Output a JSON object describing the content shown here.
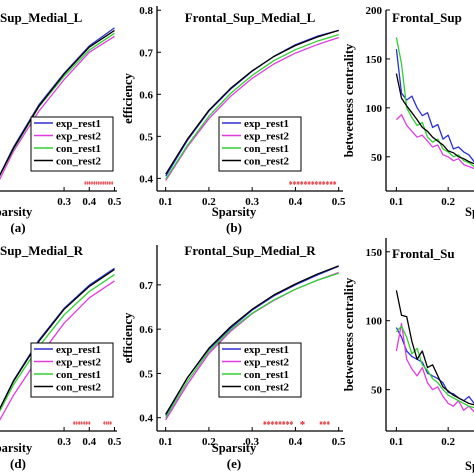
{
  "figure": {
    "series_colors": {
      "exp_rest1": "#2b2fd6",
      "exp_rest2": "#e23be3",
      "con_rest1": "#2fd12f",
      "con_rest2": "#000000"
    },
    "star_color": "#e3262b"
  },
  "chart_data": [
    {
      "type": "line",
      "panel_label": "(a)",
      "title": "Sup_Medial_L",
      "xlabel": "Sparsity",
      "ylabel": "",
      "xlim": [
        0.03,
        0.51
      ],
      "ylim": [
        0.37,
        0.81
      ],
      "xticks": [
        0.3,
        0.4,
        0.5
      ],
      "xtick_labels": [
        "0.3",
        "0.4",
        "0.5"
      ],
      "yticks": [],
      "legend": "lower-right",
      "legend_entries": [
        "exp_rest1",
        "exp_rest2",
        "con_rest1",
        "con_rest2"
      ],
      "significance": {
        "text": "*************",
        "x_start": 0.38,
        "x_end": 0.495
      },
      "series": [
        {
          "name": "exp_rest1",
          "x": [
            0.03,
            0.1,
            0.2,
            0.3,
            0.4,
            0.5
          ],
          "values": [
            0.39,
            0.475,
            0.575,
            0.65,
            0.715,
            0.758
          ]
        },
        {
          "name": "exp_rest2",
          "x": [
            0.03,
            0.1,
            0.2,
            0.3,
            0.4,
            0.5
          ],
          "values": [
            0.38,
            0.465,
            0.56,
            0.635,
            0.7,
            0.738
          ]
        },
        {
          "name": "con_rest1",
          "x": [
            0.03,
            0.1,
            0.2,
            0.3,
            0.4,
            0.5
          ],
          "values": [
            0.39,
            0.47,
            0.57,
            0.643,
            0.705,
            0.745
          ]
        },
        {
          "name": "con_rest2",
          "x": [
            0.03,
            0.1,
            0.2,
            0.3,
            0.4,
            0.5
          ],
          "values": [
            0.39,
            0.472,
            0.572,
            0.648,
            0.712,
            0.752
          ]
        }
      ]
    },
    {
      "type": "line",
      "panel_label": "(b)",
      "title": "Frontal_Sup_Medial_L",
      "xlabel": "Sparsity",
      "ylabel": "efficiency",
      "xlim": [
        0.08,
        0.51
      ],
      "ylim": [
        0.37,
        0.81
      ],
      "xticks": [
        0.1,
        0.2,
        0.3,
        0.4,
        0.5
      ],
      "xtick_labels": [
        "0.1",
        "0.2",
        "0.3",
        "0.4",
        "0.5"
      ],
      "yticks": [
        0.4,
        0.5,
        0.6,
        0.7,
        0.8
      ],
      "ytick_labels": [
        "0.4",
        "0.5",
        "0.6",
        "0.7",
        "0.8"
      ],
      "legend": "lower-right",
      "legend_entries": [
        "exp_rest1",
        "exp_rest2",
        "con_rest1",
        "con_rest2"
      ],
      "significance": {
        "text": "*************",
        "x_start": 0.385,
        "x_end": 0.495
      },
      "series": [
        {
          "name": "exp_rest1",
          "x": [
            0.1,
            0.15,
            0.2,
            0.25,
            0.3,
            0.35,
            0.4,
            0.45,
            0.5
          ],
          "values": [
            0.405,
            0.49,
            0.56,
            0.612,
            0.655,
            0.69,
            0.718,
            0.738,
            0.752
          ]
        },
        {
          "name": "exp_rest2",
          "x": [
            0.1,
            0.15,
            0.2,
            0.25,
            0.3,
            0.35,
            0.4,
            0.45,
            0.5
          ],
          "values": [
            0.395,
            0.475,
            0.542,
            0.595,
            0.638,
            0.672,
            0.698,
            0.718,
            0.735
          ]
        },
        {
          "name": "con_rest1",
          "x": [
            0.1,
            0.15,
            0.2,
            0.25,
            0.3,
            0.35,
            0.4,
            0.45,
            0.5
          ],
          "values": [
            0.398,
            0.478,
            0.548,
            0.602,
            0.645,
            0.68,
            0.706,
            0.726,
            0.742
          ]
        },
        {
          "name": "con_rest2",
          "x": [
            0.1,
            0.15,
            0.2,
            0.25,
            0.3,
            0.35,
            0.4,
            0.45,
            0.5
          ],
          "values": [
            0.41,
            0.493,
            0.562,
            0.614,
            0.656,
            0.69,
            0.716,
            0.736,
            0.752
          ]
        }
      ]
    },
    {
      "type": "line",
      "panel_label": "",
      "title": "Frontal_Sup",
      "xlabel": "Sp",
      "ylabel": "betweeness centrality",
      "xlim": [
        0.08,
        0.3
      ],
      "ylim": [
        15,
        200
      ],
      "xticks": [
        0.1,
        0.2
      ],
      "xtick_labels": [
        "0.1",
        "0.2"
      ],
      "yticks": [
        50,
        100,
        150,
        200
      ],
      "ytick_labels": [
        "50",
        "100",
        "150",
        "200"
      ],
      "series": [
        {
          "name": "exp_rest1",
          "x": [
            0.1,
            0.11,
            0.12,
            0.13,
            0.14,
            0.15,
            0.16,
            0.17,
            0.18,
            0.19,
            0.2,
            0.21,
            0.22,
            0.23,
            0.24,
            0.25,
            0.26,
            0.27,
            0.28,
            0.29,
            0.3
          ],
          "values": [
            160,
            115,
            108,
            112,
            100,
            92,
            95,
            80,
            83,
            68,
            72,
            58,
            60,
            55,
            52,
            45,
            47,
            42,
            44,
            40,
            38
          ]
        },
        {
          "name": "exp_rest2",
          "x": [
            0.1,
            0.11,
            0.12,
            0.13,
            0.14,
            0.15,
            0.16,
            0.17,
            0.18,
            0.19,
            0.2,
            0.21,
            0.22,
            0.23,
            0.24,
            0.25,
            0.26,
            0.27,
            0.28,
            0.29,
            0.3
          ],
          "values": [
            88,
            93,
            82,
            76,
            70,
            72,
            66,
            60,
            62,
            52,
            50,
            46,
            48,
            42,
            40,
            38,
            40,
            36,
            38,
            35,
            34
          ]
        },
        {
          "name": "con_rest1",
          "x": [
            0.1,
            0.11,
            0.12,
            0.13,
            0.14,
            0.15,
            0.16,
            0.17,
            0.18,
            0.19,
            0.2,
            0.21,
            0.22,
            0.23,
            0.24,
            0.25,
            0.26,
            0.27,
            0.28,
            0.29,
            0.3
          ],
          "values": [
            172,
            145,
            100,
            90,
            82,
            85,
            70,
            65,
            68,
            58,
            55,
            50,
            52,
            46,
            44,
            40,
            42,
            38,
            40,
            37,
            36
          ]
        },
        {
          "name": "con_rest2",
          "x": [
            0.1,
            0.11,
            0.12,
            0.13,
            0.14,
            0.15,
            0.16,
            0.17,
            0.18,
            0.19,
            0.2,
            0.21,
            0.22,
            0.23,
            0.24,
            0.25,
            0.26,
            0.27,
            0.28,
            0.29,
            0.3
          ],
          "values": [
            135,
            110,
            102,
            95,
            88,
            80,
            76,
            70,
            66,
            62,
            56,
            54,
            50,
            48,
            45,
            43,
            42,
            40,
            39,
            38,
            37
          ]
        }
      ]
    },
    {
      "type": "line",
      "panel_label": "(d)",
      "title": "Sup_Medial_R",
      "xlabel": "Sparsity",
      "ylabel": "",
      "xlim": [
        0.03,
        0.51
      ],
      "ylim": [
        0.37,
        0.81
      ],
      "xticks": [
        0.3,
        0.4,
        0.5
      ],
      "xtick_labels": [
        "0.3",
        "0.4",
        "0.5"
      ],
      "yticks": [],
      "legend": "lower-right",
      "legend_entries": [
        "exp_rest1",
        "exp_rest2",
        "con_rest1",
        "con_rest2"
      ],
      "significance": [
        {
          "text": "*******",
          "x_start": 0.335,
          "x_end": 0.405
        },
        {
          "text": "****",
          "x_start": 0.455,
          "x_end": 0.49
        }
      ],
      "series": [
        {
          "name": "exp_rest1",
          "x": [
            0.03,
            0.1,
            0.2,
            0.3,
            0.4,
            0.5
          ],
          "values": [
            0.405,
            0.49,
            0.585,
            0.66,
            0.715,
            0.755
          ]
        },
        {
          "name": "exp_rest2",
          "x": [
            0.03,
            0.1,
            0.2,
            0.3,
            0.4,
            0.5
          ],
          "values": [
            0.38,
            0.455,
            0.545,
            0.625,
            0.685,
            0.725
          ]
        },
        {
          "name": "con_rest1",
          "x": [
            0.03,
            0.1,
            0.2,
            0.3,
            0.4,
            0.5
          ],
          "values": [
            0.4,
            0.48,
            0.57,
            0.645,
            0.7,
            0.74
          ]
        },
        {
          "name": "con_rest2",
          "x": [
            0.03,
            0.1,
            0.2,
            0.3,
            0.4,
            0.5
          ],
          "values": [
            0.405,
            0.488,
            0.582,
            0.658,
            0.712,
            0.752
          ]
        }
      ]
    },
    {
      "type": "line",
      "panel_label": "(e)",
      "title": "Frontal_Sup_Medial_R",
      "xlabel": "Sparsity",
      "ylabel": "efficiency",
      "xlim": [
        0.08,
        0.51
      ],
      "ylim": [
        0.37,
        0.79
      ],
      "xticks": [
        0.1,
        0.2,
        0.3,
        0.4,
        0.5
      ],
      "xtick_labels": [
        "0.1",
        "0.2",
        "0.3",
        "0.4",
        "0.5"
      ],
      "yticks": [
        0.4,
        0.5,
        0.6,
        0.7
      ],
      "ytick_labels": [
        "0.4",
        "0.5",
        "0.6",
        "0.7"
      ],
      "legend": "lower-right",
      "legend_entries": [
        "exp_rest1",
        "exp_rest2",
        "con_rest1",
        "con_rest2"
      ],
      "significance": [
        {
          "text": "********",
          "x_start": 0.325,
          "x_end": 0.395
        },
        {
          "text": "*",
          "x_start": 0.41,
          "x_end": 0.415
        },
        {
          "text": "***",
          "x_start": 0.455,
          "x_end": 0.48
        }
      ],
      "series": [
        {
          "name": "exp_rest1",
          "x": [
            0.1,
            0.15,
            0.2,
            0.25,
            0.3,
            0.35,
            0.4,
            0.45,
            0.5
          ],
          "values": [
            0.405,
            0.49,
            0.555,
            0.602,
            0.643,
            0.675,
            0.7,
            0.722,
            0.742
          ]
        },
        {
          "name": "exp_rest2",
          "x": [
            0.1,
            0.15,
            0.2,
            0.25,
            0.3,
            0.35,
            0.4,
            0.45,
            0.5
          ],
          "values": [
            0.395,
            0.475,
            0.545,
            0.595,
            0.635,
            0.665,
            0.69,
            0.71,
            0.728
          ]
        },
        {
          "name": "con_rest1",
          "x": [
            0.1,
            0.15,
            0.2,
            0.25,
            0.3,
            0.35,
            0.4,
            0.45,
            0.5
          ],
          "values": [
            0.4,
            0.482,
            0.55,
            0.598,
            0.636,
            0.666,
            0.69,
            0.71,
            0.726
          ]
        },
        {
          "name": "con_rest2",
          "x": [
            0.1,
            0.15,
            0.2,
            0.25,
            0.3,
            0.35,
            0.4,
            0.45,
            0.5
          ],
          "values": [
            0.408,
            0.49,
            0.557,
            0.605,
            0.645,
            0.677,
            0.702,
            0.724,
            0.743
          ]
        }
      ]
    },
    {
      "type": "line",
      "panel_label": "",
      "title": "Frontal_Su",
      "xlabel": "Sp",
      "ylabel": "betweeness centrality",
      "xlim": [
        0.08,
        0.3
      ],
      "ylim": [
        20,
        160
      ],
      "xticks": [
        0.1,
        0.2
      ],
      "xtick_labels": [
        "0.1",
        "0.2"
      ],
      "yticks": [
        50,
        100,
        150
      ],
      "ytick_labels": [
        "50",
        "100",
        "150"
      ],
      "series": [
        {
          "name": "exp_rest1",
          "x": [
            0.1,
            0.11,
            0.12,
            0.13,
            0.14,
            0.15,
            0.16,
            0.17,
            0.18,
            0.19,
            0.2,
            0.21,
            0.22,
            0.23,
            0.24,
            0.25,
            0.26,
            0.27,
            0.28,
            0.29,
            0.3
          ],
          "values": [
            95,
            88,
            78,
            74,
            72,
            70,
            62,
            60,
            58,
            55,
            48,
            47,
            44,
            42,
            45,
            40,
            38,
            39,
            37,
            36,
            35
          ]
        },
        {
          "name": "exp_rest2",
          "x": [
            0.1,
            0.11,
            0.12,
            0.13,
            0.14,
            0.15,
            0.16,
            0.17,
            0.18,
            0.19,
            0.2,
            0.21,
            0.22,
            0.23,
            0.24,
            0.25,
            0.26,
            0.27,
            0.28,
            0.29,
            0.3
          ],
          "values": [
            78,
            98,
            72,
            65,
            60,
            66,
            55,
            50,
            52,
            45,
            40,
            38,
            42,
            35,
            38,
            34,
            33,
            35,
            32,
            33,
            31
          ]
        },
        {
          "name": "con_rest1",
          "x": [
            0.1,
            0.11,
            0.12,
            0.13,
            0.14,
            0.15,
            0.16,
            0.17,
            0.18,
            0.19,
            0.2,
            0.21,
            0.22,
            0.23,
            0.24,
            0.25,
            0.26,
            0.27,
            0.28,
            0.29,
            0.3
          ],
          "values": [
            92,
            96,
            88,
            76,
            80,
            68,
            64,
            58,
            55,
            50,
            46,
            44,
            42,
            40,
            38,
            37,
            36,
            38,
            34,
            33,
            33
          ]
        },
        {
          "name": "con_rest2",
          "x": [
            0.1,
            0.11,
            0.12,
            0.13,
            0.14,
            0.15,
            0.16,
            0.17,
            0.18,
            0.19,
            0.2,
            0.21,
            0.22,
            0.23,
            0.24,
            0.25,
            0.26,
            0.27,
            0.28,
            0.29,
            0.3
          ],
          "values": [
            122,
            104,
            103,
            85,
            72,
            78,
            66,
            68,
            60,
            52,
            49,
            46,
            44,
            42,
            40,
            39,
            38,
            37,
            36,
            36,
            35
          ]
        }
      ]
    }
  ]
}
